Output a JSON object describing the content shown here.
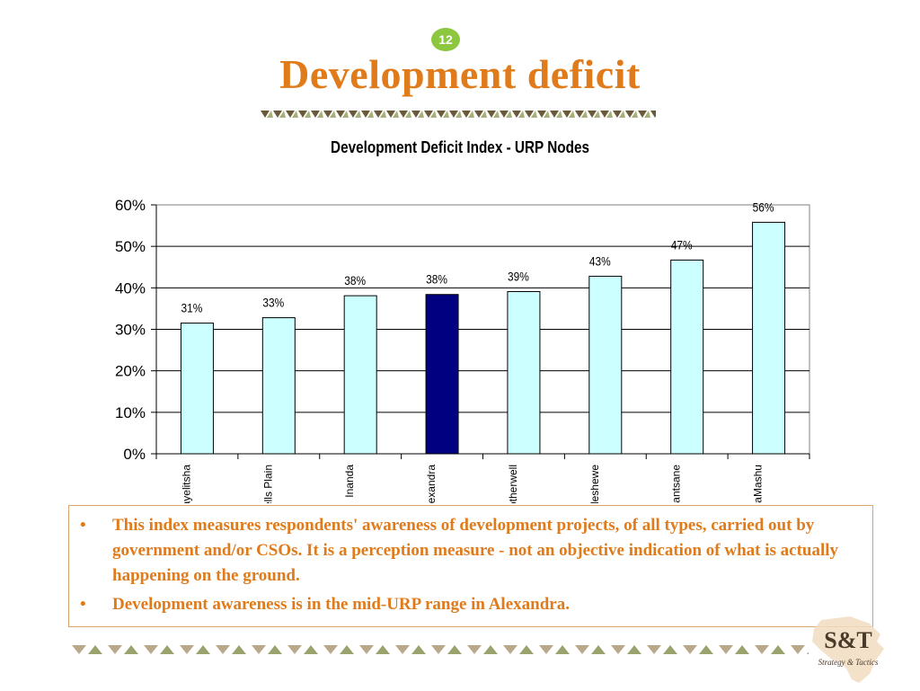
{
  "page": {
    "slide_number": "12",
    "title": "Development deficit"
  },
  "bullets": [
    "This index measures respondents' awareness of development projects, of all types, carried out by government and/or CSOs. It is a perception measure - not an objective indication of what is actually happening on the ground.",
    "Development awareness is in the mid-URP range in Alexandra."
  ],
  "logo": {
    "text_main": "S&T",
    "text_sub": "Strategy & Tactics"
  },
  "colors": {
    "accent": "#e07b1c",
    "bar_default": "#ccffff",
    "bar_highlight": "#000080",
    "badge": "#8dc63f"
  },
  "chart_data": {
    "type": "bar",
    "title": "Development Deficit Index - URP Nodes",
    "categories": [
      "Khayelitsha",
      "Mitchells Plain",
      "Inanda",
      "Alexandra",
      "Motherwell",
      "Galeshewe",
      "Ndantsane",
      "KwaMashu"
    ],
    "values": [
      31.5,
      32.8,
      38.1,
      38.4,
      39.1,
      42.8,
      46.7,
      55.8
    ],
    "data_labels": [
      "31%",
      "33%",
      "38%",
      "38%",
      "39%",
      "43%",
      "47%",
      "56%"
    ],
    "highlight_category": "Alexandra",
    "ylim": [
      0,
      60
    ],
    "yticks": [
      "0%",
      "10%",
      "20%",
      "30%",
      "40%",
      "50%",
      "60%"
    ],
    "xlabel": "",
    "ylabel": "",
    "grid": true,
    "legend": "none"
  }
}
